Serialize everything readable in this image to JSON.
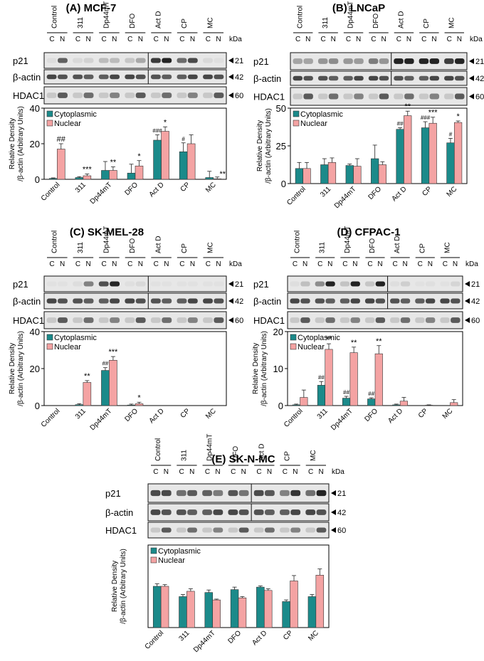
{
  "colors": {
    "cyto": "#1b8a8a",
    "nuc": "#f4a3a3",
    "text": "#000000"
  },
  "labels": {
    "kda": "kDa",
    "c": "C",
    "n": "N",
    "ylabel1": "Relative Density",
    "ylabel2": "/β-actin (Arbitrary Units)"
  },
  "chart_data": [
    {
      "panel": "A",
      "title": "(A) MCF-7",
      "type": "bar",
      "blot_rows": [
        {
          "name": "p21",
          "kda": "21"
        },
        {
          "name": "β-actin",
          "kda": "42"
        },
        {
          "name": "HDAC1",
          "kda": "60"
        }
      ],
      "categories": [
        "Control",
        "311",
        "Dp44mT",
        "DFO",
        "Act D",
        "CP",
        "MC"
      ],
      "series": [
        {
          "name": "Cytoplasmic",
          "values": [
            0.5,
            1,
            5,
            3.5,
            22,
            15.5,
            1
          ],
          "err": [
            0.3,
            0.5,
            5,
            5,
            3,
            5,
            3.5
          ],
          "ann": [
            "",
            "",
            "",
            "",
            "###",
            "#",
            ""
          ]
        },
        {
          "name": "Nuclear",
          "values": [
            17,
            2,
            5,
            7.5,
            27,
            20,
            0.3
          ],
          "err": [
            3,
            1,
            2,
            3,
            2.5,
            5,
            1
          ],
          "ann": [
            "##",
            "***",
            "**",
            "*",
            "*",
            "",
            ""
          ]
        }
      ],
      "lane_ann_nuc": [
        "",
        "",
        "",
        "",
        "",
        "",
        "**"
      ],
      "ylim": [
        0,
        40
      ],
      "yticks": [
        0,
        20,
        40
      ],
      "sep_after": 3,
      "legend": [
        "Cytoplasmic",
        "Nuclear"
      ]
    },
    {
      "panel": "B",
      "title": "(B) LNCaP",
      "type": "bar",
      "blot_rows": [
        {
          "name": "p21",
          "kda": "21"
        },
        {
          "name": "β-actin",
          "kda": "42"
        },
        {
          "name": "HDAC1",
          "kda": "60"
        }
      ],
      "categories": [
        "Control",
        "311",
        "Dp44mT",
        "DFO",
        "Act D",
        "CP",
        "MC"
      ],
      "series": [
        {
          "name": "Cytoplasmic",
          "values": [
            10,
            12.5,
            12,
            16.5,
            36,
            37,
            27
          ],
          "err": [
            4,
            4,
            1,
            9,
            1,
            4,
            3
          ],
          "ann": [
            "",
            "",
            "",
            "",
            "##",
            "###",
            "#"
          ]
        },
        {
          "name": "Nuclear",
          "values": [
            10,
            14,
            11.5,
            12.5,
            45,
            40,
            40.5
          ],
          "err": [
            4,
            3,
            5,
            2,
            3,
            4,
            1
          ],
          "ann": [
            "",
            "",
            "",
            "",
            "**",
            "***",
            "*"
          ]
        }
      ],
      "ylim": [
        0,
        50
      ],
      "yticks": [
        0,
        25,
        50
      ],
      "sep_after": 3,
      "legend": [
        "Cytoplasmic",
        "Nuclear"
      ]
    },
    {
      "panel": "C",
      "title": "(C) SK-MEL-28",
      "type": "bar",
      "blot_rows": [
        {
          "name": "p21",
          "kda": "21"
        },
        {
          "name": "β-actin",
          "kda": "42"
        },
        {
          "name": "HDAC1",
          "kda": "60"
        }
      ],
      "categories": [
        "Control",
        "311",
        "Dp44mT",
        "DFO",
        "Act D",
        "CP",
        "MC"
      ],
      "series": [
        {
          "name": "Cytoplasmic",
          "values": [
            0,
            0.5,
            19,
            0.3,
            0,
            0,
            0
          ],
          "err": [
            0,
            0.5,
            1.5,
            0.5,
            0,
            0,
            0
          ],
          "ann": [
            "",
            "",
            "##",
            "",
            "",
            "",
            ""
          ]
        },
        {
          "name": "Nuclear",
          "values": [
            0,
            12.5,
            24.5,
            1,
            0,
            0,
            0
          ],
          "err": [
            0,
            1,
            2,
            0.8,
            0,
            0,
            0
          ],
          "ann": [
            "",
            "**",
            "***",
            "*",
            "",
            "",
            ""
          ]
        }
      ],
      "ylim": [
        0,
        40
      ],
      "yticks": [
        0,
        20,
        40
      ],
      "sep_after": 3,
      "legend": [
        "Cytoplasmic",
        "Nuclear"
      ]
    },
    {
      "panel": "D",
      "title": "(D) CFPAC-1",
      "type": "bar",
      "blot_rows": [
        {
          "name": "p21",
          "kda": "21"
        },
        {
          "name": "β-actin",
          "kda": "42"
        },
        {
          "name": "HDAC1",
          "kda": "60"
        }
      ],
      "categories": [
        "Control",
        "311",
        "Dp44mT",
        "DFO",
        "Act D",
        "CP",
        "MC"
      ],
      "series": [
        {
          "name": "Cytoplasmic",
          "values": [
            0.2,
            5.5,
            2,
            1.8,
            0.2,
            0,
            0
          ],
          "err": [
            0.2,
            1,
            0.5,
            0.3,
            0.2,
            0,
            0
          ],
          "ann": [
            "",
            "##",
            "##",
            "##",
            "",
            "",
            ""
          ]
        },
        {
          "name": "Nuclear",
          "values": [
            2.2,
            15.2,
            14.3,
            14,
            1.2,
            0.1,
            0.8
          ],
          "err": [
            2,
            1.5,
            1.5,
            2.2,
            1,
            0.1,
            0.8
          ],
          "ann": [
            "",
            "**",
            "**",
            "**",
            "",
            "",
            ""
          ]
        }
      ],
      "ylim": [
        0,
        20
      ],
      "yticks": [
        0,
        10,
        20
      ],
      "sep_after": 3,
      "legend": [
        "Cytoplasmic",
        "Nuclear"
      ]
    },
    {
      "panel": "E",
      "title": "(E) SK-N-MC",
      "type": "bar",
      "blot_rows": [
        {
          "name": "p21",
          "kda": "21"
        },
        {
          "name": "β-actin",
          "kda": "42"
        },
        {
          "name": "HDAC1",
          "kda": "60"
        }
      ],
      "categories": [
        "Control",
        "311",
        "Dp44mT",
        "DFO",
        "Act D",
        "CP",
        "MC"
      ],
      "series": [
        {
          "name": "Cytoplasmic",
          "values": [
            10,
            7.5,
            8.5,
            9.2,
            9.8,
            6.3,
            7.5
          ],
          "err": [
            0.6,
            0.5,
            0.6,
            0.6,
            0.3,
            0.4,
            0.5
          ],
          "ann": [
            "",
            "",
            "",
            "",
            "",
            "",
            ""
          ]
        },
        {
          "name": "Nuclear",
          "values": [
            10,
            8.8,
            6.7,
            7.2,
            9,
            11.3,
            12.7
          ],
          "err": [
            0.4,
            0.6,
            0.2,
            0.3,
            0.4,
            1.3,
            1.5
          ],
          "ann": [
            "",
            "",
            "",
            "",
            "",
            "",
            ""
          ]
        }
      ],
      "ylim": [
        0,
        20
      ],
      "yticks": [],
      "sep_after": 3,
      "legend": [
        "Cytoplasmic",
        "Nuclear"
      ]
    }
  ]
}
